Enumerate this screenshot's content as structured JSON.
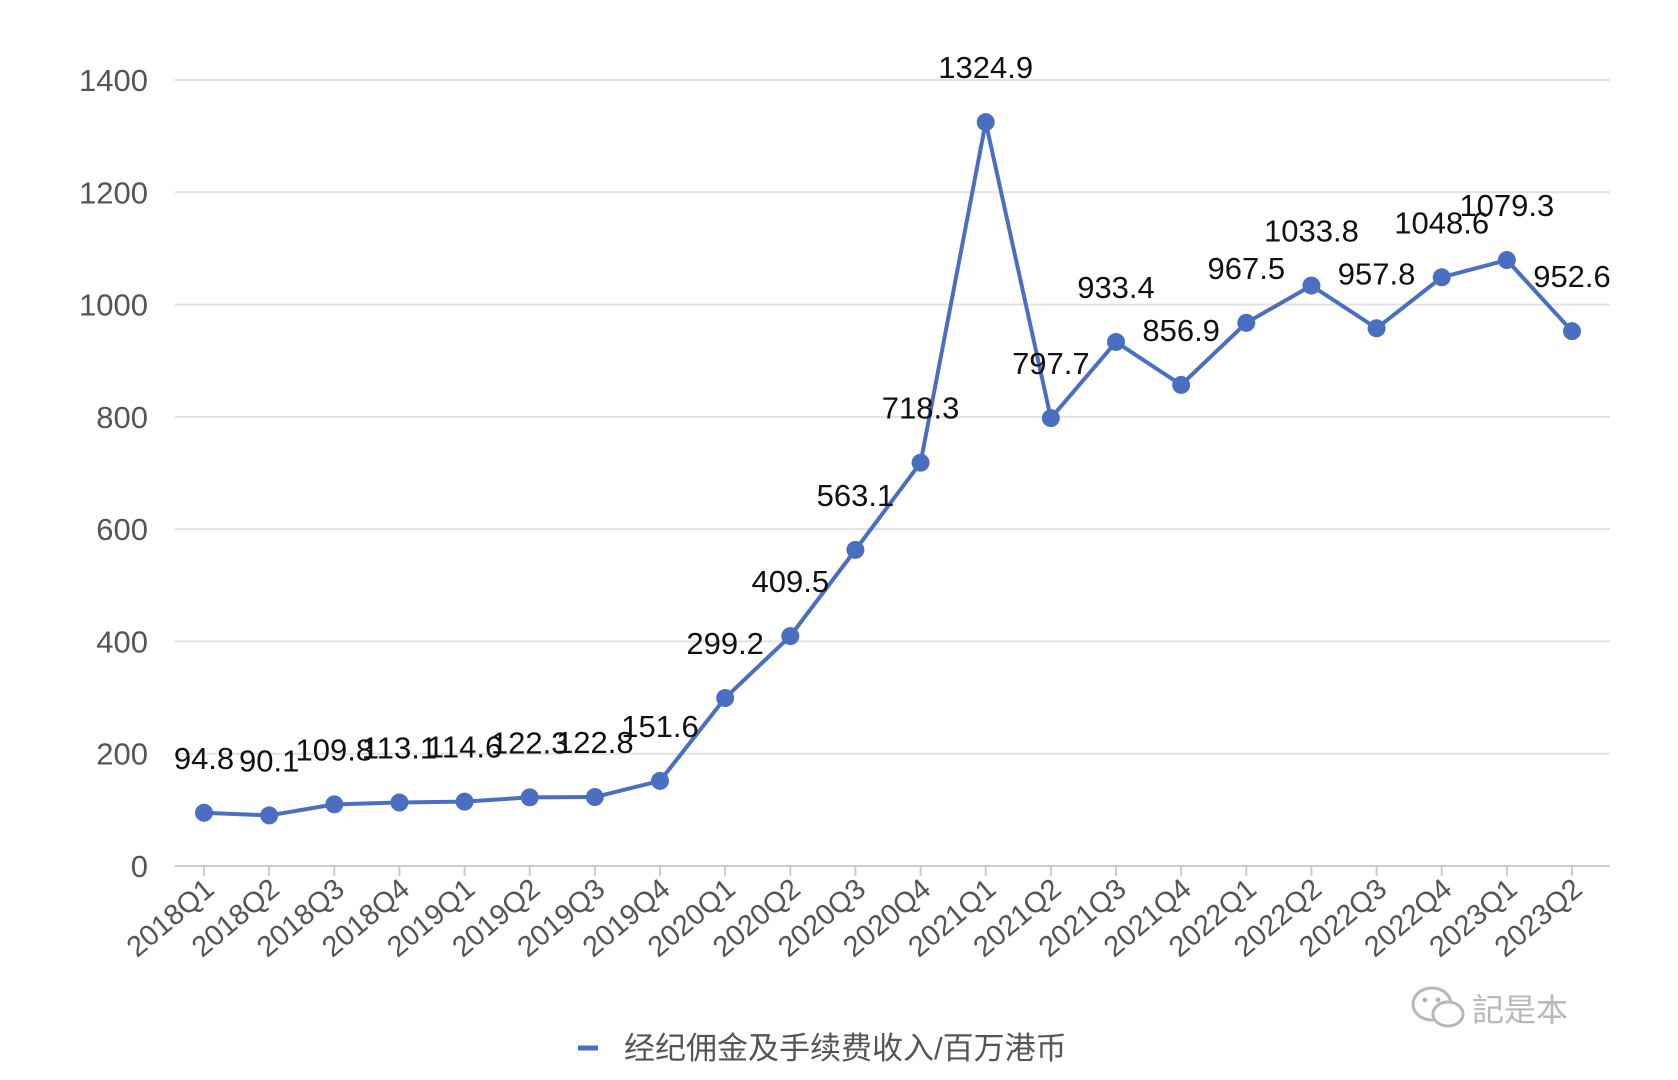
{
  "chart_data": {
    "type": "line",
    "categories": [
      "2018Q1",
      "2018Q2",
      "2018Q3",
      "2018Q4",
      "2019Q1",
      "2019Q2",
      "2019Q3",
      "2019Q4",
      "2020Q1",
      "2020Q2",
      "2020Q3",
      "2020Q4",
      "2021Q1",
      "2021Q2",
      "2021Q3",
      "2021Q4",
      "2022Q1",
      "2022Q2",
      "2022Q3",
      "2022Q4",
      "2023Q1",
      "2023Q2"
    ],
    "series": [
      {
        "name": "经纪佣金及手续费收入/百万港币",
        "values": [
          94.8,
          90.1,
          109.8,
          113.1,
          114.6,
          122.3,
          122.8,
          151.6,
          299.2,
          409.5,
          563.1,
          718.3,
          1324.9,
          797.7,
          933.4,
          856.9,
          967.5,
          1033.8,
          957.8,
          1048.6,
          1079.3,
          952.6
        ],
        "color": "#4a6fc1"
      }
    ],
    "ylim": [
      0,
      1400
    ],
    "yticks": [
      0,
      200,
      400,
      600,
      800,
      1000,
      1200,
      1400
    ],
    "grid": true,
    "legend_position": "bottom-center",
    "data_labels": true
  },
  "watermark": {
    "text": "記是本",
    "icon": "wechat-icon"
  }
}
